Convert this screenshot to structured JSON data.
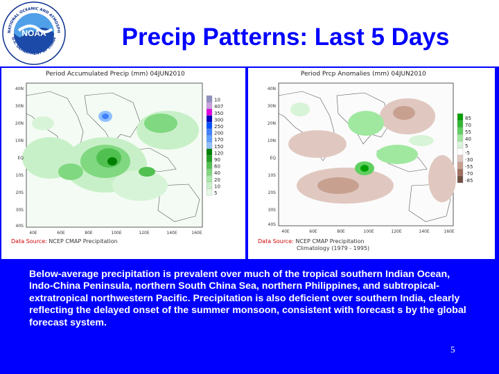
{
  "slide": {
    "title": "Precip Patterns: Last 5 Days",
    "description": "Below-average precipitation  is prevalent over much of the tropical southern Indian Ocean, Indo-China Peninsula, northern South China Sea, northern Philippines, and subtropical-extratropical northwestern Pacific. Precipitation is also deficient over southern India, clearly reflecting the delayed onset of the summer monsoon, consistent with forecast s by the global forecast system.",
    "page_number": "5",
    "logo": {
      "name": "NOAA",
      "ring_text_top": "NATIONAL OCEANIC AND ATMOSPHERIC ADMINISTRATION",
      "ring_text_bottom": "U.S. DEPARTMENT OF COMMERCE"
    }
  },
  "colors": {
    "background": "#0000ff",
    "title": "#0000ff",
    "text": "#ffffff"
  },
  "maps": {
    "left": {
      "title": "Period Accumulated Precip (mm) 04JUN2010",
      "source_label": "Data Source:",
      "source_text": "NCEP CMAP Precipitation",
      "lat_labels": [
        "40N",
        "30N",
        "20N",
        "10N",
        "EQ",
        "10S",
        "20S",
        "30S",
        "40S"
      ],
      "lon_labels": [
        "40E",
        "60E",
        "80E",
        "100E",
        "120E",
        "140E",
        "160E"
      ],
      "legend": [
        "10",
        "407",
        "350",
        "300",
        "250",
        "200",
        "170",
        "150",
        "120",
        "90",
        "60",
        "40",
        "20",
        "10",
        "5"
      ],
      "legend_colors": [
        "#9090c0",
        "#c8a0e0",
        "#e000e0",
        "#0000c0",
        "#0050ff",
        "#4080ff",
        "#60a0ff",
        "#90c0ff",
        "#008000",
        "#20a020",
        "#50c050",
        "#80d880",
        "#a8e8a8",
        "#c8f0c8",
        "#e4f8e4"
      ]
    },
    "right": {
      "title": "Period Prcp Anomalies (mm) 04JUN2010",
      "source_label": "Data Source:",
      "source_text": "NCEP CMAP Precipitation",
      "source_text_2": "Climatology (1979 - 1995)",
      "lat_labels": [
        "40N",
        "30N",
        "20N",
        "10N",
        "EQ",
        "10S",
        "20S",
        "30S",
        "40S"
      ],
      "lon_labels": [
        "40E",
        "60E",
        "80E",
        "100E",
        "120E",
        "140E",
        "160E"
      ],
      "legend": [
        "85",
        "70",
        "55",
        "40",
        "5",
        "-5",
        "-30",
        "-55",
        "-70",
        "-85"
      ],
      "legend_colors": [
        "#00a000",
        "#30b830",
        "#60d060",
        "#a0e8a0",
        "#d8f4d8",
        "#ffffff",
        "#e0c8c0",
        "#c8a090",
        "#a07060",
        "#705040"
      ]
    }
  }
}
